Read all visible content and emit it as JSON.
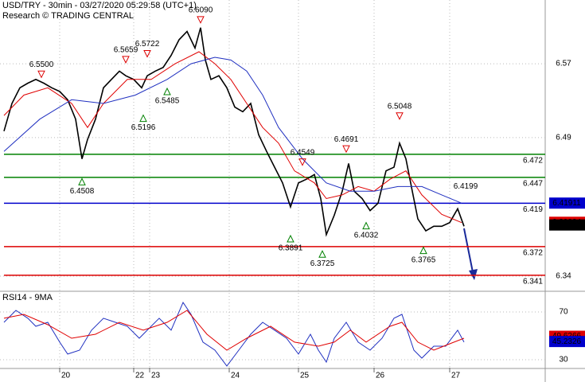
{
  "chart_data": [
    {
      "type": "line",
      "title": "USD/TRY - 30min - 03/27/2020 05:29:58 (UTC+1)",
      "subtitle": "Research © TRADING CENTRAL",
      "xlim": [
        0,
        68.5
      ],
      "ylim": [
        6.3245,
        6.639
      ],
      "yticks": [
        6.57,
        6.49,
        6.34
      ],
      "grid": true,
      "series": [
        {
          "color": "#000000",
          "x": [
            0.5,
            1.5,
            2.5,
            3.5,
            4.5,
            5.5,
            6.5,
            7.5,
            8.5,
            9.5,
            10.3,
            11,
            12,
            13,
            14,
            15,
            15.8,
            16.8,
            17.8,
            18.5,
            19.5,
            20.5,
            21.5,
            22.5,
            23.5,
            24.5,
            25.2,
            25.8,
            26.5,
            27.5,
            28.5,
            29.5,
            30.5,
            31.5,
            32.5,
            33.5,
            34.5,
            35.5,
            36.5,
            37.5,
            38.5,
            39.5,
            40.3,
            41,
            42,
            43,
            43.8,
            44.5,
            45.5,
            46.5,
            47.5,
            48.5,
            49.5,
            50.2,
            51,
            51.8,
            52.5,
            53.5,
            54.5,
            55.5,
            56.5,
            57.5,
            58.3
          ],
          "values": [
            6.497,
            6.527,
            6.544,
            6.549,
            6.553,
            6.549,
            6.544,
            6.54,
            6.531,
            6.51,
            6.467,
            6.488,
            6.51,
            6.544,
            6.553,
            6.562,
            6.557,
            6.553,
            6.544,
            6.557,
            6.562,
            6.566,
            6.579,
            6.596,
            6.605,
            6.587,
            6.609,
            6.574,
            6.553,
            6.557,
            6.544,
            6.523,
            6.518,
            6.527,
            6.493,
            6.475,
            6.458,
            6.441,
            6.415,
            6.441,
            6.445,
            6.45,
            6.424,
            6.385,
            6.406,
            6.432,
            6.462,
            6.432,
            6.424,
            6.411,
            6.419,
            6.454,
            6.458,
            6.484,
            6.467,
            6.432,
            6.402,
            6.389,
            6.394,
            6.394,
            6.398,
            6.413,
            6.394
          ]
        },
        {
          "color": "#e00000",
          "x": [
            0.5,
            3,
            6,
            9,
            11,
            13,
            16,
            19,
            22,
            25,
            27,
            29,
            31,
            33,
            35,
            37,
            39.5,
            41,
            43,
            45,
            47,
            49,
            51,
            53,
            55.5,
            58
          ],
          "values": [
            6.514,
            6.536,
            6.544,
            6.527,
            6.501,
            6.527,
            6.553,
            6.553,
            6.57,
            6.583,
            6.57,
            6.553,
            6.527,
            6.501,
            6.484,
            6.454,
            6.441,
            6.424,
            6.428,
            6.437,
            6.432,
            6.445,
            6.454,
            6.428,
            6.407,
            6.398
          ]
        },
        {
          "color": "#2030c0",
          "x": [
            0.5,
            5,
            9,
            13,
            17,
            21,
            24,
            27,
            29,
            31,
            33,
            35,
            38,
            41,
            44,
            47,
            50,
            53,
            55.5,
            58
          ],
          "values": [
            6.475,
            6.51,
            6.531,
            6.527,
            6.536,
            6.553,
            6.57,
            6.577,
            6.574,
            6.562,
            6.536,
            6.501,
            6.467,
            6.441,
            6.432,
            6.432,
            6.437,
            6.437,
            6.428,
            6.419
          ]
        }
      ],
      "levels": [
        {
          "value": 6.472,
          "color": "#008000"
        },
        {
          "value": 6.447,
          "color": "#008000"
        },
        {
          "value": 6.419,
          "color": "#0000cc"
        },
        {
          "value": 6.372,
          "color": "#dd0000"
        },
        {
          "value": 6.341,
          "color": "#dd0000"
        }
      ],
      "markers": [
        {
          "kind": "peak",
          "x": 5.2,
          "value": 6.55,
          "label": "6.5500"
        },
        {
          "kind": "peak",
          "x": 15.8,
          "value": 6.5659,
          "label": "6.5659"
        },
        {
          "kind": "peak",
          "x": 18.5,
          "value": 6.5722,
          "label": "6.5722"
        },
        {
          "kind": "peak",
          "x": 25.2,
          "value": 6.609,
          "label": "6.6090"
        },
        {
          "kind": "peak",
          "x": 38,
          "value": 6.4549,
          "label": "6.4549"
        },
        {
          "kind": "peak",
          "x": 43.5,
          "value": 6.4691,
          "label": "6.4691"
        },
        {
          "kind": "peak",
          "x": 50.2,
          "value": 6.5048,
          "label": "6.5048"
        },
        {
          "kind": "trough",
          "x": 10.3,
          "value": 6.4508,
          "label": "6.4508"
        },
        {
          "kind": "trough",
          "x": 18,
          "value": 6.5196,
          "label": "6.5196"
        },
        {
          "kind": "trough",
          "x": 21,
          "value": 6.5485,
          "label": "6.5485"
        },
        {
          "kind": "trough",
          "x": 36.5,
          "value": 6.3891,
          "label": "6.3891"
        },
        {
          "kind": "trough",
          "x": 40.5,
          "value": 6.3725,
          "label": "6.3725"
        },
        {
          "kind": "trough",
          "x": 46,
          "value": 6.4032,
          "label": "6.4032"
        },
        {
          "kind": "trough",
          "x": 53.2,
          "value": 6.3765,
          "label": "6.3765"
        }
      ],
      "notes": [
        {
          "x": 58.5,
          "value": 6.4199,
          "label": "6.4199"
        }
      ],
      "price_tags": [
        {
          "value": 6.41911,
          "label": "6.41911",
          "color": "#0000cc"
        },
        {
          "value": 6.39834,
          "label": "6.39834",
          "color": "#dd0000"
        },
        {
          "value": 6.39542,
          "label": "6.39542",
          "color": "#000000"
        }
      ]
    },
    {
      "type": "line",
      "title": "RSI14 - 9MA",
      "xlim": [
        0,
        68.5
      ],
      "ylim": [
        23.3,
        86
      ],
      "yticks": [
        70,
        30
      ],
      "xticks": [
        {
          "value": 7.5,
          "label": "20"
        },
        {
          "value": 16.8,
          "label": "22"
        },
        {
          "value": 18.8,
          "label": "23"
        },
        {
          "value": 28.8,
          "label": "24"
        },
        {
          "value": 37.5,
          "label": "25"
        },
        {
          "value": 47,
          "label": "26"
        },
        {
          "value": 56.5,
          "label": "27"
        }
      ],
      "grid": true,
      "series": [
        {
          "color": "#2030c0",
          "x": [
            0.5,
            2,
            3.5,
            4.5,
            6,
            7.5,
            8.5,
            10,
            11.5,
            13,
            14.5,
            16,
            17.5,
            18.5,
            20,
            21.5,
            23,
            24,
            25.5,
            27,
            28.5,
            30,
            31.5,
            33,
            34.5,
            36,
            37.5,
            39,
            40,
            41,
            42,
            43.5,
            45,
            46.5,
            48,
            49.5,
            50.5,
            52,
            53,
            54.5,
            56,
            57.5,
            58.3
          ],
          "values": [
            61.3,
            71.3,
            64.7,
            58,
            61.3,
            44.7,
            34.7,
            38,
            54.7,
            64.7,
            61.3,
            58,
            48,
            54.7,
            64.7,
            54.7,
            78,
            68,
            44.7,
            38,
            24.7,
            38,
            51.3,
            61.3,
            54.7,
            48,
            34.7,
            51.3,
            38,
            28,
            48,
            61.3,
            44.7,
            38,
            48,
            64.7,
            68,
            38,
            31.3,
            41.3,
            41.3,
            54.7,
            44.7
          ]
        },
        {
          "color": "#e00000",
          "x": [
            0.5,
            3,
            6,
            9,
            12,
            15,
            18,
            21,
            23.5,
            26,
            28.5,
            31,
            34,
            37,
            40,
            42,
            44,
            46,
            49,
            50.5,
            52.5,
            54.5,
            56.5,
            58.3
          ],
          "values": [
            64.7,
            68,
            59.3,
            48,
            51.3,
            61.3,
            54.7,
            61.3,
            71.3,
            51.3,
            38,
            48,
            58,
            44.7,
            41.3,
            44.7,
            54.7,
            44.7,
            58,
            61.3,
            44.7,
            38,
            43.3,
            48
          ]
        }
      ],
      "price_tags": [
        {
          "value": 49.6266,
          "label": "49.6266",
          "color": "#dd0000"
        },
        {
          "value": 45.2326,
          "label": "45.2326",
          "color": "#0000cc"
        }
      ]
    }
  ]
}
